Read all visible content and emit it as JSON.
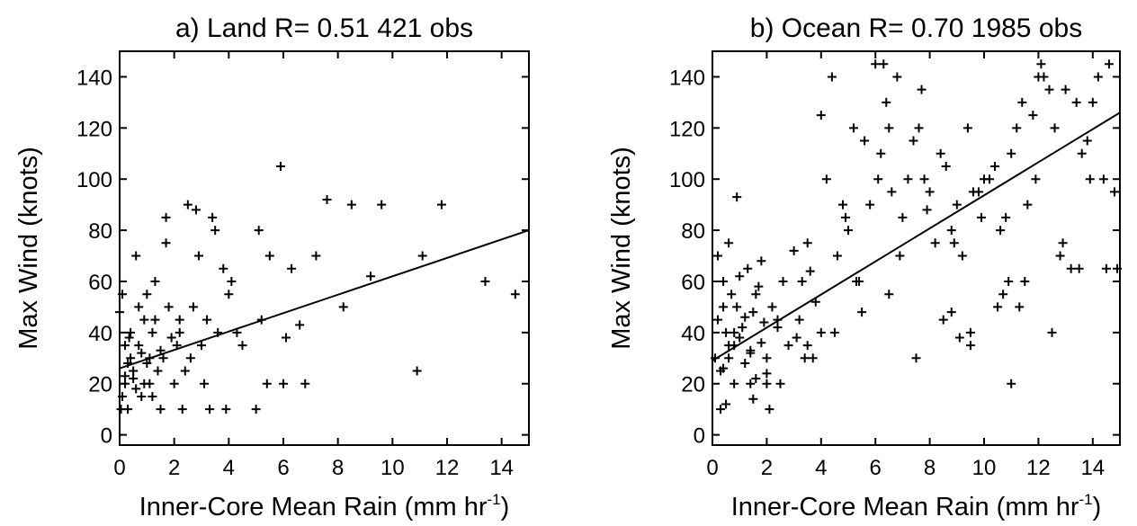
{
  "chart_data": [
    {
      "type": "scatter",
      "title": "a) Land  R= 0.51  421 obs",
      "ylabel": "Max Wind (knots)",
      "xlabel": {
        "text": "Inner-Core Mean Rain (mm hr",
        "superscript": "-1",
        "suffix": ")"
      },
      "xlim": [
        0,
        15
      ],
      "ylim": [
        -4,
        150
      ],
      "xticks": [
        0,
        2,
        4,
        6,
        8,
        10,
        12,
        14
      ],
      "yticks": [
        0,
        20,
        40,
        60,
        80,
        100,
        120,
        140
      ],
      "color": "#000000",
      "x": [
        0,
        0.1,
        0.2,
        0.3,
        0.4,
        0.5,
        0.6,
        0.7,
        0.8,
        0.9,
        1,
        1.1,
        1.2,
        1.3,
        1.4,
        1.5,
        1.6,
        1.7,
        1.7,
        1.8,
        2,
        2.1,
        2.2,
        2.3,
        2.5,
        2.6,
        2.8,
        2.9,
        3,
        3.2,
        3.4,
        3.5,
        3.6,
        3.8,
        3.9,
        4,
        4.1,
        4.3,
        4.5,
        5,
        5.1,
        5.2,
        5.4,
        5.5,
        5.9,
        6,
        6.1,
        6.3,
        6.6,
        6.8,
        7.2,
        7.6,
        8.2,
        8.5,
        9.2,
        9.6,
        10.9,
        11.1,
        11.8,
        13.4,
        14.5,
        0.2,
        0.3,
        0.5,
        0.6,
        0.8,
        1,
        1.2,
        0.4,
        0.1,
        0.7,
        2.4,
        1.9,
        2.7,
        3.3,
        0.2,
        1.5,
        0.9,
        1.3,
        0.05,
        0.35,
        1.1,
        2.2,
        3.1
      ],
      "y": [
        48,
        55,
        20,
        10,
        30,
        25,
        70,
        35,
        15,
        45,
        55,
        20,
        40,
        60,
        25,
        10,
        30,
        85,
        75,
        50,
        20,
        35,
        45,
        10,
        90,
        30,
        88,
        70,
        35,
        45,
        85,
        80,
        40,
        65,
        10,
        55,
        60,
        40,
        35,
        10,
        80,
        45,
        20,
        70,
        105,
        20,
        38,
        65,
        43,
        20,
        70,
        92,
        50,
        90,
        62,
        90,
        25,
        70,
        90,
        60,
        55,
        35,
        28,
        22,
        18,
        32,
        28,
        15,
        40,
        15,
        50,
        25,
        38,
        50,
        10,
        23,
        33,
        20,
        45,
        10,
        38,
        30,
        40,
        20
      ],
      "fit": {
        "x": [
          0,
          15
        ],
        "y": [
          26,
          80
        ]
      }
    },
    {
      "type": "scatter",
      "title": "b) Ocean  R= 0.70  1985 obs",
      "ylabel": "Max Wind (knots)",
      "xlabel": {
        "text": "Inner-Core Mean Rain (mm hr",
        "superscript": "-1",
        "suffix": ")"
      },
      "xlim": [
        0,
        15
      ],
      "ylim": [
        -4,
        150
      ],
      "xticks": [
        0,
        2,
        4,
        6,
        8,
        10,
        12,
        14
      ],
      "yticks": [
        0,
        20,
        40,
        60,
        80,
        100,
        120,
        140
      ],
      "color": "#000000",
      "x": [
        0.1,
        0.2,
        0.3,
        0.4,
        0.5,
        0.6,
        0.7,
        0.8,
        0.9,
        1,
        1.1,
        1.2,
        1.3,
        1.4,
        1.5,
        1.6,
        1.7,
        1.8,
        1.9,
        2,
        0.2,
        0.4,
        0.6,
        0.8,
        1,
        1.2,
        1.4,
        1.6,
        1.8,
        2,
        2.2,
        2.4,
        2.6,
        2.8,
        3,
        3.2,
        3.4,
        3.6,
        3.8,
        4,
        0.3,
        0.5,
        0.9,
        1.5,
        2.1,
        2.5,
        3.1,
        3.5,
        4.2,
        4.6,
        5,
        5.4,
        5.8,
        6.2,
        6.6,
        7,
        7.4,
        7.8,
        8.2,
        8.6,
        9,
        9.4,
        9.8,
        10.2,
        10.6,
        11,
        11.4,
        11.8,
        12.2,
        12.6,
        13,
        13.4,
        13.8,
        14.2,
        14.6,
        4,
        4.4,
        4.8,
        5.2,
        5.6,
        6,
        6.4,
        6.8,
        7.2,
        7.6,
        8,
        8.4,
        8.8,
        9.2,
        9.6,
        10,
        10.4,
        10.8,
        11.2,
        11.6,
        12,
        12.4,
        12.8,
        13.2,
        13.6,
        14,
        14.4,
        14.8,
        3.5,
        4.5,
        5.5,
        6.5,
        7.5,
        8.5,
        9.5,
        10.5,
        11.5,
        12.5,
        13.5,
        14.5,
        6.3,
        6.5,
        7.7,
        12.1,
        0.4,
        0.8,
        1.4,
        2.4,
        3.3,
        3.7,
        4.9,
        5.3,
        6.1,
        6.9,
        7.9,
        8.9,
        9.9,
        10.9,
        11.9,
        12.9,
        13.9,
        14.9,
        11,
        0.6,
        2,
        8.8,
        9.1,
        9.5,
        10.7,
        11.3
      ],
      "y": [
        30,
        45,
        25,
        60,
        40,
        35,
        55,
        20,
        50,
        38,
        42,
        28,
        65,
        33,
        48,
        22,
        58,
        36,
        44,
        30,
        70,
        26,
        75,
        40,
        62,
        46,
        32,
        55,
        68,
        24,
        50,
        42,
        60,
        35,
        72,
        45,
        30,
        64,
        52,
        40,
        10,
        12,
        93,
        14,
        10,
        20,
        38,
        75,
        100,
        70,
        80,
        60,
        90,
        110,
        95,
        85,
        115,
        100,
        75,
        105,
        90,
        120,
        95,
        100,
        80,
        110,
        130,
        125,
        140,
        120,
        135,
        130,
        115,
        140,
        145,
        125,
        140,
        90,
        120,
        115,
        145,
        130,
        140,
        100,
        120,
        95,
        110,
        80,
        70,
        95,
        100,
        105,
        85,
        120,
        90,
        140,
        135,
        70,
        65,
        110,
        130,
        100,
        95,
        35,
        40,
        48,
        55,
        30,
        45,
        35,
        50,
        60,
        40,
        65,
        65,
        145,
        120,
        135,
        145,
        50,
        35,
        20,
        45,
        60,
        30,
        85,
        60,
        100,
        70,
        88,
        75,
        85,
        60,
        100,
        75,
        100,
        65,
        20,
        30,
        20,
        48,
        38,
        40,
        55,
        50
      ],
      "fit": {
        "x": [
          0,
          15
        ],
        "y": [
          29,
          126
        ]
      }
    }
  ]
}
